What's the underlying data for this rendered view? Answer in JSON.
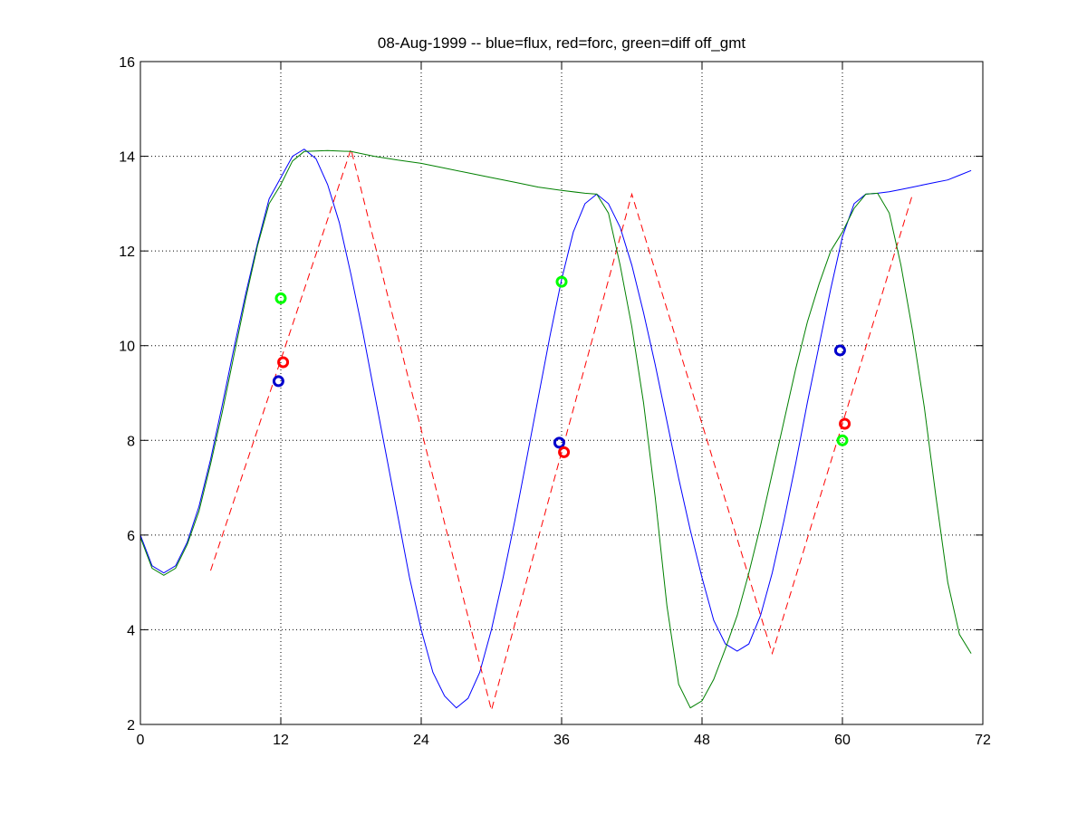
{
  "chart_data": {
    "type": "line",
    "title": "08-Aug-1999 -- blue=flux, red=forc, green=diff off_gmt",
    "xlabel": "",
    "ylabel": "",
    "xlim": [
      0,
      72
    ],
    "ylim": [
      2,
      16
    ],
    "xticks": [
      0,
      12,
      24,
      36,
      48,
      60,
      72
    ],
    "yticks": [
      2,
      4,
      6,
      8,
      10,
      12,
      14,
      16
    ],
    "xtick_labels": [
      "0",
      "12",
      "24",
      "36",
      "48",
      "60",
      "72"
    ],
    "ytick_labels": [
      "2",
      "4",
      "6",
      "8",
      "10",
      "12",
      "14",
      "16"
    ],
    "grid": true,
    "grid_style": "dotted",
    "series": [
      {
        "key": "flux",
        "color": "#0000ff",
        "style": "solid",
        "points": [
          [
            0,
            6.0
          ],
          [
            1,
            5.35
          ],
          [
            2,
            5.2
          ],
          [
            3,
            5.35
          ],
          [
            4,
            5.85
          ],
          [
            5,
            6.6
          ],
          [
            6,
            7.6
          ],
          [
            7,
            8.75
          ],
          [
            8,
            9.95
          ],
          [
            9,
            11.1
          ],
          [
            10,
            12.15
          ],
          [
            11,
            13.1
          ],
          [
            12,
            13.55
          ],
          [
            13,
            14.0
          ],
          [
            14,
            14.15
          ],
          [
            15,
            13.95
          ],
          [
            16,
            13.4
          ],
          [
            17,
            12.6
          ],
          [
            18,
            11.5
          ],
          [
            19,
            10.3
          ],
          [
            20,
            9.0
          ],
          [
            21,
            7.7
          ],
          [
            22,
            6.4
          ],
          [
            23,
            5.1
          ],
          [
            24,
            4.0
          ],
          [
            25,
            3.1
          ],
          [
            26,
            2.6
          ],
          [
            27,
            2.35
          ],
          [
            28,
            2.55
          ],
          [
            29,
            3.1
          ],
          [
            30,
            4.0
          ],
          [
            31,
            5.1
          ],
          [
            32,
            6.3
          ],
          [
            33,
            7.6
          ],
          [
            34,
            8.9
          ],
          [
            35,
            10.2
          ],
          [
            36,
            11.4
          ],
          [
            37,
            12.4
          ],
          [
            38,
            13.0
          ],
          [
            39,
            13.2
          ],
          [
            40,
            13.0
          ],
          [
            41,
            12.5
          ],
          [
            42,
            11.7
          ],
          [
            43,
            10.7
          ],
          [
            44,
            9.6
          ],
          [
            45,
            8.4
          ],
          [
            46,
            7.2
          ],
          [
            47,
            6.1
          ],
          [
            48,
            5.1
          ],
          [
            49,
            4.2
          ],
          [
            50,
            3.7
          ],
          [
            51,
            3.55
          ],
          [
            52,
            3.7
          ],
          [
            53,
            4.3
          ],
          [
            54,
            5.2
          ],
          [
            55,
            6.3
          ],
          [
            56,
            7.5
          ],
          [
            57,
            8.8
          ],
          [
            58,
            10.0
          ],
          [
            59,
            11.2
          ],
          [
            60,
            12.3
          ],
          [
            61,
            13.0
          ],
          [
            62,
            13.2
          ],
          [
            63,
            13.22
          ],
          [
            64,
            13.25
          ],
          [
            65,
            13.3
          ],
          [
            66,
            13.35
          ],
          [
            67,
            13.4
          ],
          [
            68,
            13.45
          ],
          [
            69,
            13.5
          ],
          [
            70,
            13.6
          ],
          [
            71,
            13.7
          ]
        ]
      },
      {
        "key": "forc",
        "color": "#ff0000",
        "style": "dashed",
        "points": [
          [
            6,
            5.25
          ],
          [
            18,
            14.15
          ],
          [
            30,
            2.3
          ],
          [
            42,
            13.2
          ],
          [
            54,
            3.5
          ],
          [
            66,
            13.2
          ]
        ]
      },
      {
        "key": "diff",
        "color": "#008000",
        "style": "solid",
        "points": [
          [
            0,
            5.95
          ],
          [
            1,
            5.3
          ],
          [
            2,
            5.15
          ],
          [
            3,
            5.3
          ],
          [
            4,
            5.8
          ],
          [
            5,
            6.5
          ],
          [
            6,
            7.5
          ],
          [
            7,
            8.6
          ],
          [
            8,
            9.8
          ],
          [
            9,
            11.0
          ],
          [
            10,
            12.1
          ],
          [
            11,
            13.0
          ],
          [
            12,
            13.4
          ],
          [
            13,
            13.9
          ],
          [
            14,
            14.1
          ],
          [
            16,
            14.12
          ],
          [
            18,
            14.1
          ],
          [
            20,
            14.0
          ],
          [
            22,
            13.92
          ],
          [
            24,
            13.85
          ],
          [
            26,
            13.75
          ],
          [
            28,
            13.65
          ],
          [
            30,
            13.55
          ],
          [
            32,
            13.45
          ],
          [
            34,
            13.35
          ],
          [
            36,
            13.28
          ],
          [
            38,
            13.22
          ],
          [
            39,
            13.2
          ],
          [
            40,
            12.8
          ],
          [
            41,
            11.7
          ],
          [
            42,
            10.4
          ],
          [
            43,
            8.8
          ],
          [
            44,
            6.8
          ],
          [
            45,
            4.5
          ],
          [
            46,
            2.85
          ],
          [
            47,
            2.35
          ],
          [
            48,
            2.5
          ],
          [
            49,
            2.95
          ],
          [
            50,
            3.6
          ],
          [
            51,
            4.3
          ],
          [
            52,
            5.2
          ],
          [
            53,
            6.2
          ],
          [
            54,
            7.3
          ],
          [
            55,
            8.4
          ],
          [
            56,
            9.5
          ],
          [
            57,
            10.5
          ],
          [
            58,
            11.3
          ],
          [
            59,
            12.0
          ],
          [
            60,
            12.4
          ],
          [
            61,
            12.9
          ],
          [
            62,
            13.2
          ],
          [
            63,
            13.22
          ],
          [
            64,
            12.8
          ],
          [
            65,
            11.7
          ],
          [
            66,
            10.3
          ],
          [
            67,
            8.7
          ],
          [
            68,
            6.8
          ],
          [
            69,
            5.0
          ],
          [
            70,
            3.9
          ],
          [
            71,
            3.5
          ]
        ]
      }
    ],
    "markers": [
      {
        "x": 11.8,
        "y": 9.25,
        "color": "#0000cc"
      },
      {
        "x": 12.2,
        "y": 9.65,
        "color": "#ff0000"
      },
      {
        "x": 12.0,
        "y": 11.0,
        "color": "#00ff00"
      },
      {
        "x": 35.8,
        "y": 7.95,
        "color": "#0000cc"
      },
      {
        "x": 36.2,
        "y": 7.75,
        "color": "#ff0000"
      },
      {
        "x": 36.0,
        "y": 11.35,
        "color": "#00ff00"
      },
      {
        "x": 59.8,
        "y": 9.9,
        "color": "#0000cc"
      },
      {
        "x": 60.2,
        "y": 8.35,
        "color": "#ff0000"
      },
      {
        "x": 60.0,
        "y": 8.0,
        "color": "#00ff00"
      }
    ]
  }
}
